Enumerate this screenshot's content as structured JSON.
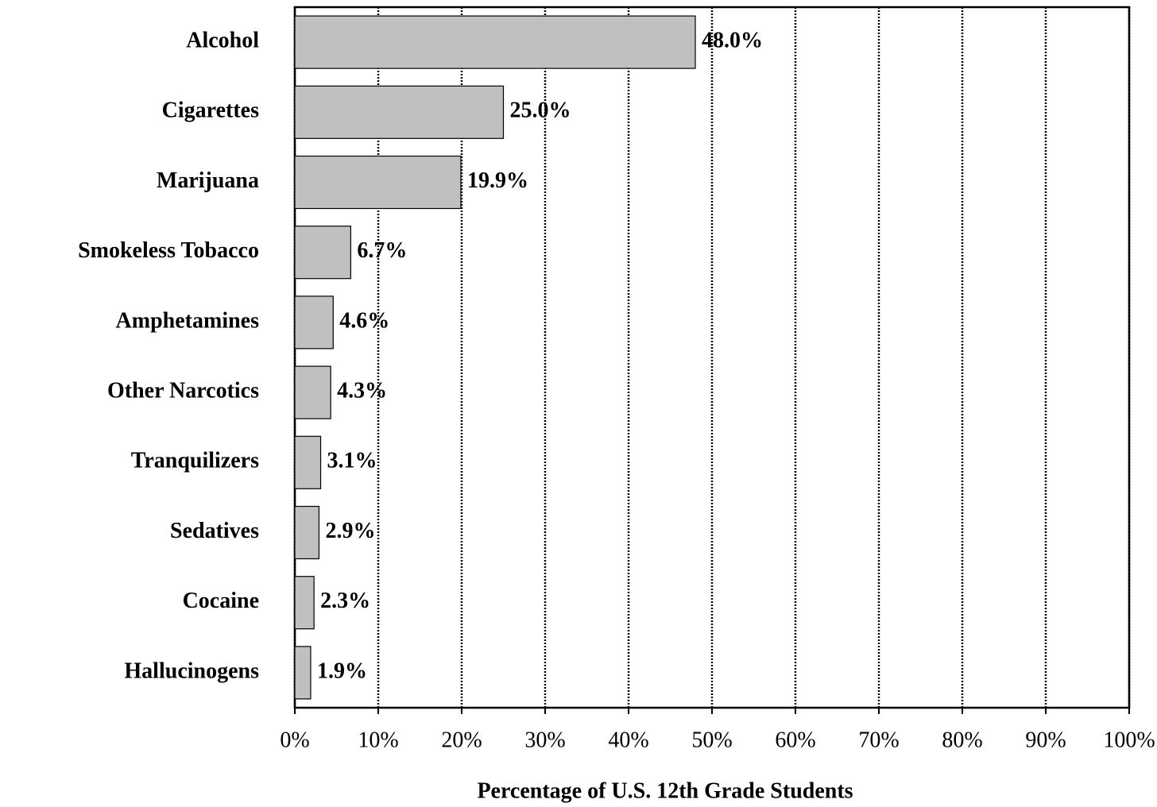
{
  "chart_data": {
    "type": "hbar",
    "x_label": "Percentage of U.S. 12th Grade Students",
    "categories": [
      "Alcohol",
      "Cigarettes",
      "Marijuana",
      "Smokeless Tobacco",
      "Amphetamines",
      "Other Narcotics",
      "Tranquilizers",
      "Sedatives",
      "Cocaine",
      "Hallucinogens"
    ],
    "values": [
      48.0,
      25.0,
      19.9,
      6.7,
      4.6,
      4.3,
      3.1,
      2.9,
      2.3,
      1.9
    ],
    "value_labels": [
      "48.0%",
      "25.0%",
      "19.9%",
      "6.7%",
      "4.6%",
      "4.3%",
      "3.1%",
      "2.9%",
      "2.3%",
      "1.9%"
    ],
    "color": "#c0c0c0",
    "xlim": [
      0,
      100
    ],
    "xticks": [
      {
        "value": 0,
        "label": "0%"
      },
      {
        "value": 10,
        "label": "10%"
      },
      {
        "value": 20,
        "label": "20%"
      },
      {
        "value": 30,
        "label": "30%"
      },
      {
        "value": 40,
        "label": "40%"
      },
      {
        "value": 50,
        "label": "50%"
      },
      {
        "value": 60,
        "label": "60%"
      },
      {
        "value": 70,
        "label": "70%"
      },
      {
        "value": 80,
        "label": "80%"
      },
      {
        "value": 90,
        "label": "90%"
      },
      {
        "value": 100,
        "label": "100%"
      }
    ],
    "grid": true
  }
}
